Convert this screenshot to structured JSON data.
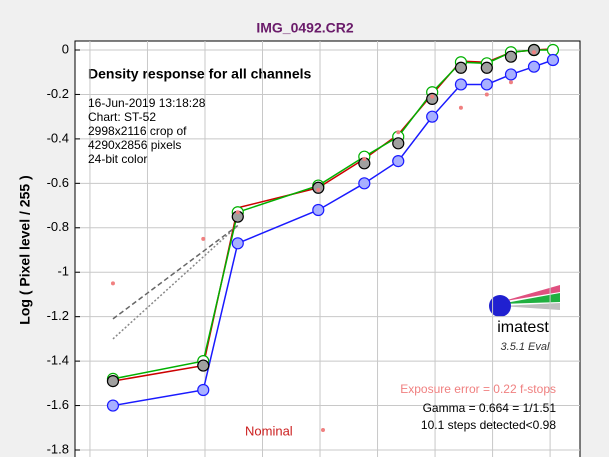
{
  "window_title": "IMG_0492.CR2",
  "chart_data": {
    "type": "line",
    "title": "Density response for all channels",
    "info": [
      "16-Jun-2019 13:18:28",
      "Chart: ST-52",
      "2998x2116 crop of",
      "4290x2856 pixels",
      "24-bit color"
    ],
    "ylabel": "Log ( Pixel level / 255 )",
    "annotations": [
      "Exposure error = 0.22 f-stops",
      "Gamma = 0.664 = 1/1.51",
      "10.1 steps detected<0.98"
    ],
    "annotation_colors": [
      "#f08080",
      "#000000",
      "#000000"
    ],
    "xlim": [
      -0.26,
      8.52
    ],
    "xticks": [
      0,
      1,
      2,
      3,
      4,
      5,
      6,
      7,
      8
    ],
    "ylim": [
      -1.8,
      0.04
    ],
    "yticks": [
      0,
      -0.2,
      -0.4,
      -0.6,
      -0.8,
      -1,
      -1.2,
      -1.4,
      -1.6,
      -1.8
    ],
    "grid": true,
    "x": [
      0.4,
      1.97,
      2.57,
      3.97,
      4.77,
      5.36,
      5.95,
      6.45,
      6.9,
      7.32,
      7.72,
      8.05
    ],
    "series": [
      {
        "color": "#666666",
        "line": "dashed",
        "marker": "none",
        "x": [
          0.4,
          2.57
        ],
        "values": [
          -1.21,
          -0.79
        ]
      },
      {
        "color": "#888888",
        "line": "dotted",
        "marker": "none",
        "x": [
          0.4,
          2.57
        ],
        "values": [
          -1.3,
          -0.79
        ]
      },
      {
        "color": "#cc0000",
        "line": "solid",
        "marker": "none",
        "values": [
          -1.49,
          -1.42,
          -0.71,
          -0.62,
          -0.49,
          -0.38,
          -0.2,
          -0.05,
          -0.055,
          -0.01,
          0,
          0.005
        ]
      },
      {
        "color": "#00b000",
        "line": "solid",
        "marker": "circle",
        "fill": "#ffffff",
        "values": [
          -1.48,
          -1.4,
          -0.73,
          -0.61,
          -0.48,
          -0.39,
          -0.19,
          -0.055,
          -0.06,
          -0.01,
          0,
          0
        ]
      },
      {
        "color": "#1a1aff",
        "line": "solid",
        "marker": "circle",
        "fill": "#a8b0ff",
        "values": [
          -1.6,
          -1.53,
          -0.87,
          -0.72,
          -0.6,
          -0.5,
          -0.3,
          -0.155,
          -0.155,
          -0.11,
          -0.075,
          -0.045
        ]
      },
      {
        "color": "#000000",
        "line": "none",
        "marker": "circle",
        "fill": "#a0a0a0",
        "values": [
          -1.49,
          -1.42,
          -0.75,
          -0.62,
          -0.51,
          -0.42,
          -0.22,
          -0.08,
          -0.08,
          -0.03,
          0,
          null
        ]
      },
      {
        "name": "Nominal",
        "color": "#f08080",
        "line": "none",
        "marker": "dot",
        "values": [
          -1.05,
          -0.85,
          -0.73,
          -0.63,
          -0.49,
          -0.37,
          -0.21,
          -0.26,
          -0.2,
          -0.145,
          -0.01,
          null
        ]
      }
    ]
  },
  "logo": {
    "text": "imatest",
    "version": "3.5.1  Eval"
  }
}
